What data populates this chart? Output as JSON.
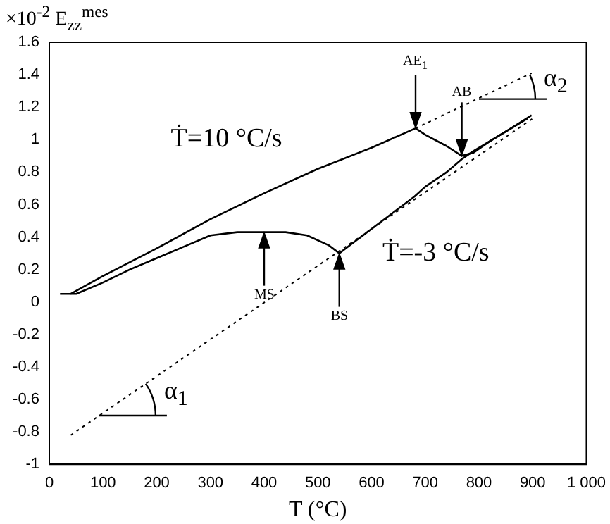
{
  "chart_data": {
    "type": "line",
    "xlabel": "T (°C)",
    "ylabel": "×10$^{-2}$ E$_{zz}$$^{mes}$",
    "xlim": [
      0,
      1000
    ],
    "xticks": [
      0,
      100,
      200,
      300,
      400,
      500,
      600,
      700,
      800,
      900,
      {
        "value": 1000,
        "label": "1 000"
      }
    ],
    "ylim": [
      -1,
      1.6
    ],
    "yticks": [
      -1,
      -0.8,
      -0.6,
      -0.4,
      -0.2,
      0,
      0.2,
      0.4,
      0.6,
      0.8,
      1,
      1.2,
      1.4,
      1.6
    ],
    "grid": false,
    "legend": false,
    "marker": "none",
    "series": [
      {
        "color": "#000000",
        "line_style": "solid",
        "x": [
          20,
          40,
          100,
          200,
          300,
          400,
          500,
          600,
          682,
          700,
          740,
          768,
          790,
          820,
          860,
          898
        ],
        "values": [
          0.05,
          0.05,
          0.16,
          0.33,
          0.51,
          0.67,
          0.82,
          0.95,
          1.07,
          1.03,
          0.96,
          0.9,
          0.92,
          0.99,
          1.07,
          1.15
        ]
      },
      {
        "color": "#000000",
        "line_style": "solid",
        "x": [
          890,
          860,
          820,
          790,
          768,
          740,
          700,
          680,
          640,
          600,
          560,
          540,
          520,
          480,
          440,
          400,
          350,
          300,
          250,
          200,
          150,
          100,
          50,
          40
        ],
        "values": [
          1.13,
          1.07,
          0.99,
          0.93,
          0.88,
          0.8,
          0.71,
          0.65,
          0.55,
          0.45,
          0.35,
          0.3,
          0.35,
          0.41,
          0.43,
          0.43,
          0.43,
          0.41,
          0.34,
          0.27,
          0.2,
          0.12,
          0.05,
          0.05
        ]
      },
      {
        "color": "#000000",
        "line_style": "dotted",
        "x": [
          40,
          900
        ],
        "values": [
          -0.82,
          1.13
        ]
      },
      {
        "color": "#000000",
        "line_style": "dotted",
        "x": [
          682,
          898
        ],
        "values": [
          1.07,
          1.41
        ]
      }
    ],
    "annotations": [
      "Ṫ=10 °C/s",
      "Ṫ=-3 °C/s",
      {
        "text": "AE$_{1}$",
        "x": 682,
        "y": 1.07
      },
      {
        "text": "AB",
        "x": 768,
        "y": 0.9
      },
      {
        "text": "MS",
        "x": 400,
        "y": 0.43
      },
      {
        "text": "BS",
        "x": 540,
        "y": 0.3
      },
      {
        "text": "α$_{1}$",
        "x": 93,
        "y": -0.7
      },
      {
        "text": "α$_{2}$",
        "x": 800,
        "y": 1.25
      }
    ]
  }
}
